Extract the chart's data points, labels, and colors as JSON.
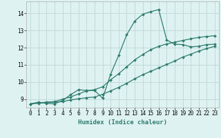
{
  "xlabel": "Humidex (Indice chaleur)",
  "bg_color": "#dff2f2",
  "grid_color": "#c0dada",
  "line_color": "#2e7d6e",
  "xlim": [
    -0.5,
    23.5
  ],
  "ylim": [
    8.5,
    14.7
  ],
  "xticks": [
    0,
    1,
    2,
    3,
    4,
    5,
    6,
    7,
    8,
    9,
    10,
    11,
    12,
    13,
    14,
    15,
    16,
    17,
    18,
    19,
    20,
    21,
    22,
    23
  ],
  "yticks": [
    9,
    10,
    11,
    12,
    13,
    14
  ],
  "curve1_x": [
    0,
    1,
    2,
    3,
    4,
    5,
    6,
    7,
    8,
    9,
    10,
    11,
    12,
    13,
    14,
    15,
    16,
    17,
    18,
    19,
    20,
    21,
    22,
    23
  ],
  "curve1_y": [
    8.72,
    8.82,
    8.75,
    8.72,
    8.92,
    9.25,
    9.55,
    9.5,
    9.5,
    9.05,
    10.45,
    11.55,
    12.75,
    13.55,
    13.95,
    14.1,
    14.22,
    12.45,
    12.2,
    12.18,
    12.05,
    12.08,
    12.18,
    12.2
  ],
  "curve2_x": [
    0,
    1,
    2,
    3,
    4,
    5,
    6,
    7,
    8,
    9,
    10,
    11,
    12,
    13,
    14,
    15,
    16,
    17,
    18,
    19,
    20,
    21,
    22,
    23
  ],
  "curve2_y": [
    8.72,
    8.78,
    8.82,
    8.85,
    9.0,
    9.12,
    9.3,
    9.48,
    9.55,
    9.72,
    10.12,
    10.48,
    10.88,
    11.28,
    11.6,
    11.88,
    12.08,
    12.22,
    12.32,
    12.42,
    12.52,
    12.6,
    12.65,
    12.7
  ],
  "curve3_x": [
    0,
    1,
    2,
    3,
    4,
    5,
    6,
    7,
    8,
    9,
    10,
    11,
    12,
    13,
    14,
    15,
    16,
    17,
    18,
    19,
    20,
    21,
    22,
    23
  ],
  "curve3_y": [
    8.72,
    8.76,
    8.8,
    8.82,
    8.85,
    8.95,
    9.02,
    9.08,
    9.12,
    9.28,
    9.48,
    9.68,
    9.92,
    10.18,
    10.42,
    10.62,
    10.82,
    11.02,
    11.22,
    11.45,
    11.62,
    11.8,
    11.95,
    12.08
  ],
  "xlabel_fontsize": 6.5,
  "tick_fontsize": 5.5
}
